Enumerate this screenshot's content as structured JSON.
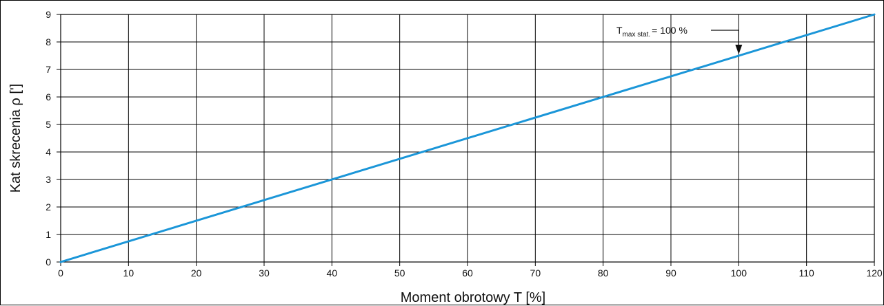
{
  "chart_data": {
    "type": "line",
    "title": "",
    "xlabel": "Moment obrotowy T [%]",
    "ylabel": "Kat  skrecenia ρ [']",
    "xlim": [
      0,
      120
    ],
    "ylim": [
      0,
      9
    ],
    "x_ticks": [
      0,
      10,
      20,
      30,
      40,
      50,
      60,
      70,
      80,
      90,
      100,
      110,
      120
    ],
    "y_ticks": [
      0,
      1,
      2,
      3,
      4,
      5,
      6,
      7,
      8,
      9
    ],
    "grid": true,
    "series": [
      {
        "x": [
          0,
          120
        ],
        "y": [
          0,
          9
        ],
        "color": "#1b96d8"
      }
    ],
    "annotations": [
      {
        "main": "T",
        "subscript": "max stat.",
        "suffix": "= 100 %",
        "points_to_x": 100,
        "points_to_y": 7.5
      }
    ]
  }
}
